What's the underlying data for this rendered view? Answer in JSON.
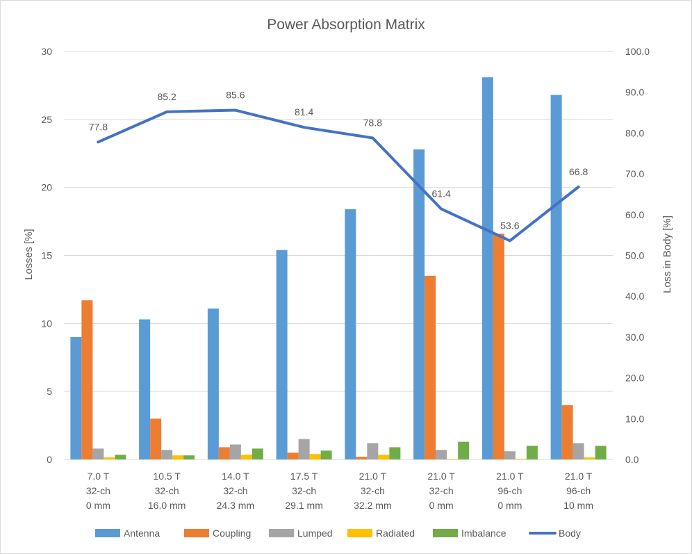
{
  "chart_data": {
    "type": "bar",
    "title": "Power Absorption Matrix",
    "ylabel": "Losses [%]",
    "y2label": "Loss in Body [%]",
    "ylim": [
      0,
      30
    ],
    "y2lim": [
      0,
      100
    ],
    "yticks": [
      "0",
      "5",
      "10",
      "15",
      "20",
      "25",
      "30"
    ],
    "y2ticks": [
      "0.0",
      "10.0",
      "20.0",
      "30.0",
      "40.0",
      "50.0",
      "60.0",
      "70.0",
      "80.0",
      "90.0",
      "100.0"
    ],
    "grid": true,
    "legend_position": "bottom",
    "categories": [
      [
        "7.0 T",
        "32-ch",
        "0 mm"
      ],
      [
        "10.5 T",
        "32-ch",
        "16.0 mm"
      ],
      [
        "14.0 T",
        "32-ch",
        "24.3 mm"
      ],
      [
        "17.5 T",
        "32-ch",
        "29.1 mm"
      ],
      [
        "21.0 T",
        "32-ch",
        "32.2 mm"
      ],
      [
        "21.0 T",
        "32-ch",
        "0 mm"
      ],
      [
        "21.0 T",
        "96-ch",
        "0 mm"
      ],
      [
        "21.0 T",
        "96-ch",
        "10 mm"
      ]
    ],
    "series": [
      {
        "name": "Antenna",
        "kind": "bar",
        "color": "#5b9bd5",
        "values": [
          9.0,
          10.3,
          11.1,
          15.4,
          18.4,
          22.8,
          28.1,
          26.8
        ]
      },
      {
        "name": "Coupling",
        "kind": "bar",
        "color": "#ed7d31",
        "values": [
          11.7,
          3.0,
          0.9,
          0.5,
          0.2,
          13.5,
          16.6,
          4.0
        ]
      },
      {
        "name": "Lumped",
        "kind": "bar",
        "color": "#a5a5a5",
        "values": [
          0.8,
          0.7,
          1.1,
          1.5,
          1.2,
          0.7,
          0.6,
          1.2
        ]
      },
      {
        "name": "Radiated",
        "kind": "bar",
        "color": "#ffc000",
        "values": [
          0.15,
          0.3,
          0.35,
          0.4,
          0.35,
          0.05,
          0.05,
          0.15
        ]
      },
      {
        "name": "Imbalance",
        "kind": "bar",
        "color": "#70ad47",
        "values": [
          0.35,
          0.3,
          0.8,
          0.65,
          0.9,
          1.3,
          1.0,
          1.0
        ]
      },
      {
        "name": "Body",
        "kind": "line",
        "axis": "secondary",
        "color": "#4472c4",
        "values": [
          77.8,
          85.2,
          85.6,
          81.4,
          78.8,
          61.4,
          53.6,
          66.8
        ],
        "labels": [
          "77.8",
          "85.2",
          "85.6",
          "81.4",
          "78.8",
          "61.4",
          "53.6",
          "66.8"
        ]
      }
    ]
  }
}
